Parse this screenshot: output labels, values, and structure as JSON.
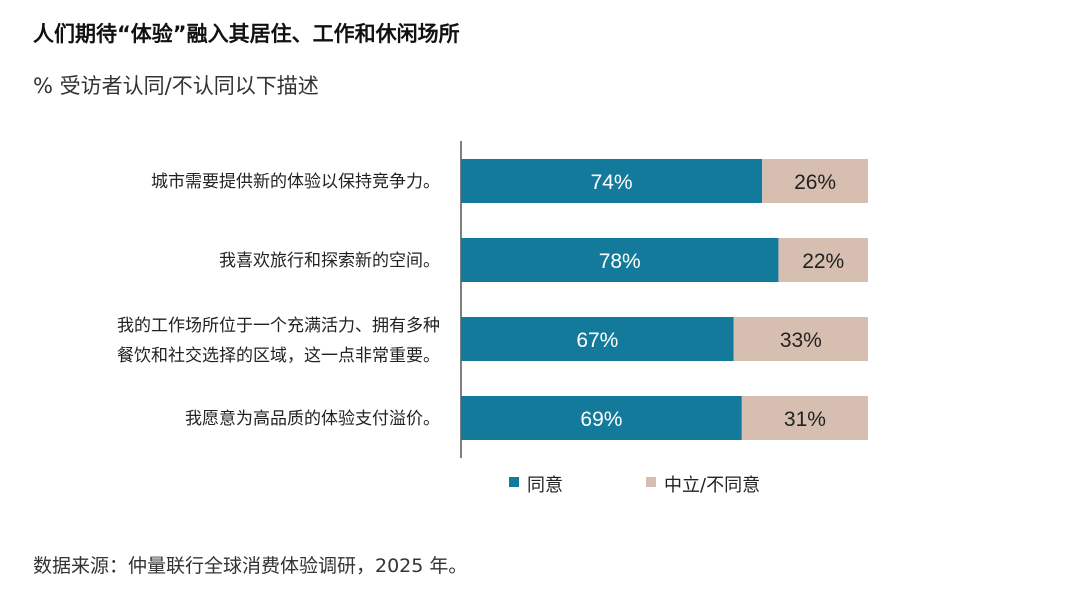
{
  "header": {
    "title": "人们期待“体验”融入其居住、工作和休闲场所",
    "subtitle": "% 受访者认同/不认同以下描述"
  },
  "footer": {
    "source": "数据来源：仲量联行全球消费体验调研，2025 年。"
  },
  "colors": {
    "agree": "#137a9c",
    "neutral": "#d6bfb0",
    "axis": "#555555"
  },
  "chart_data": {
    "type": "bar",
    "orientation": "horizontal",
    "stacked": true,
    "categories": [
      [
        "城市需要提供新的体验以保持竞争力。"
      ],
      [
        "我喜欢旅行和探索新的空间。"
      ],
      [
        "我的工作场所位于一个充满活力、拥有多种",
        "餐饮和社交选择的区域，这一点非常重要。"
      ],
      [
        "我愿意为高品质的体验支付溢价。"
      ]
    ],
    "series": [
      {
        "name": "同意",
        "values": [
          74,
          78,
          67,
          69
        ],
        "labels": [
          "74%",
          "78%",
          "67%",
          "69%"
        ]
      },
      {
        "name": "中立/不同意",
        "values": [
          26,
          22,
          33,
          31
        ],
        "labels": [
          "26%",
          "22%",
          "33%",
          "31%"
        ]
      }
    ],
    "xlim": [
      0,
      100
    ],
    "legend_position": "bottom",
    "grid": false
  }
}
